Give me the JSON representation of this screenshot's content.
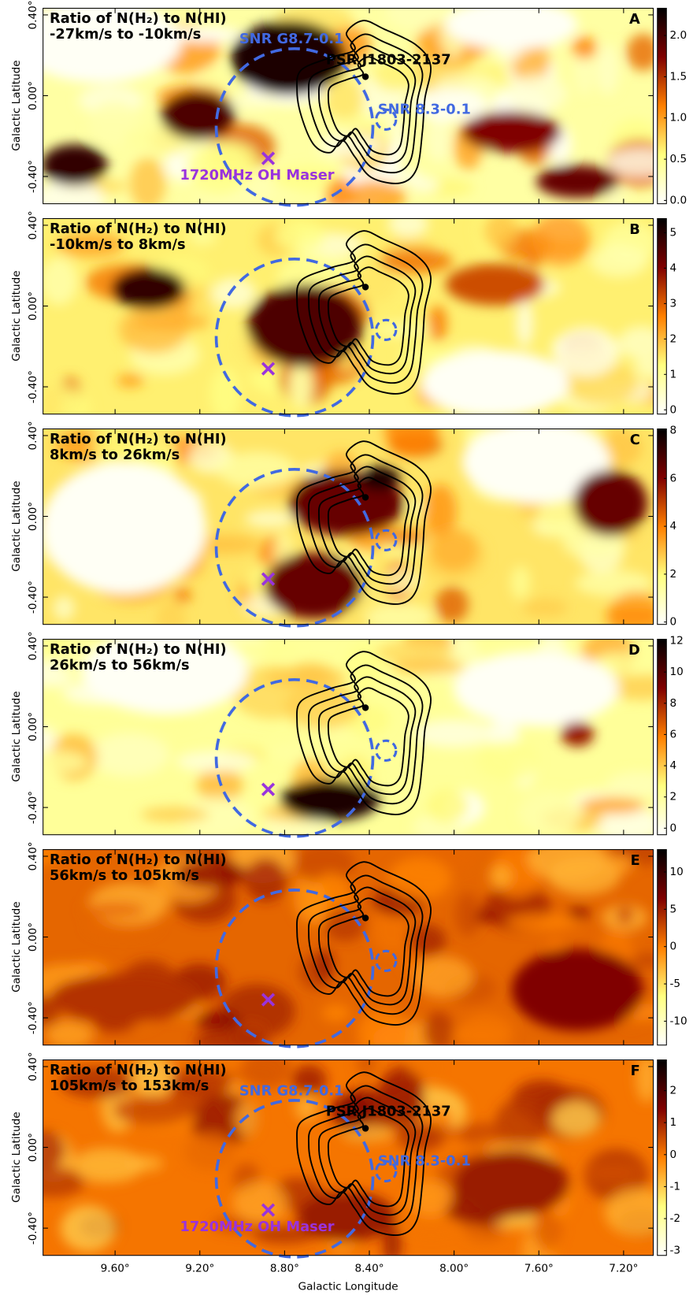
{
  "chart_data": [
    {
      "type": "heatmap",
      "title": "Ratio of N(H₂) to N(HI)",
      "subtitle": "-27km/s to -10km/s",
      "panel": "A",
      "ylabel": "Galactic Latitude",
      "ylim": [
        -0.535,
        0.433
      ],
      "yticks": [
        {
          "value": 0.4,
          "label": "0.40°"
        },
        {
          "value": 0,
          "label": "0.00°"
        },
        {
          "value": -0.4,
          "label": "-0.40°"
        }
      ],
      "colormap": "afmhot_r",
      "clim": [
        -0.04,
        2.33
      ],
      "cticks": [
        {
          "value": 0,
          "label": "0.0"
        },
        0.5,
        {
          "value": 1,
          "label": "1.0"
        },
        1.5,
        {
          "value": 2,
          "label": "2.0"
        }
      ],
      "annotations": [
        {
          "text": "SNR G8.7-0.1",
          "color": "#4169e1"
        },
        {
          "text": "PSR J1803-2137",
          "color": "#000000"
        },
        {
          "text": "SNR 8.3-0.1",
          "color": "#4169e1"
        },
        {
          "text": "1720MHz OH Maser",
          "color": "#9933dd"
        }
      ]
    },
    {
      "type": "heatmap",
      "title": "Ratio of N(H₂) to N(HI)",
      "subtitle": "-10km/s to 8km/s",
      "panel": "B",
      "ylabel": "Galactic Latitude",
      "ylim": [
        -0.535,
        0.433
      ],
      "yticks": [
        {
          "value": 0.4,
          "label": "0.40°"
        },
        {
          "value": 0,
          "label": "0.00°"
        },
        {
          "value": -0.4,
          "label": "-0.40°"
        }
      ],
      "colormap": "afmhot_r",
      "clim": [
        -0.12,
        5.4
      ],
      "cticks": [
        0,
        1,
        2,
        3,
        4,
        5
      ]
    },
    {
      "type": "heatmap",
      "title": "Ratio of N(H₂) to N(HI)",
      "subtitle": "8km/s to 26km/s",
      "panel": "C",
      "ylabel": "Galactic Latitude",
      "ylim": [
        -0.535,
        0.433
      ],
      "yticks": [
        {
          "value": 0.4,
          "label": "0.40°"
        },
        {
          "value": 0,
          "label": "0.00°"
        },
        {
          "value": -0.4,
          "label": "-0.40°"
        }
      ],
      "colormap": "afmhot_r",
      "clim": [
        -0.1,
        8.07
      ],
      "cticks": [
        0,
        2,
        4,
        6,
        8
      ]
    },
    {
      "type": "heatmap",
      "title": "Ratio of N(H₂) to N(HI)",
      "subtitle": "26km/s to 56km/s",
      "panel": "D",
      "ylabel": "Galactic Latitude",
      "ylim": [
        -0.535,
        0.433
      ],
      "yticks": [
        {
          "value": 0.4,
          "label": "0.40°"
        },
        {
          "value": 0,
          "label": "0.00°"
        },
        {
          "value": -0.4,
          "label": "-0.40°"
        }
      ],
      "colormap": "afmhot_r",
      "clim": [
        -0.42,
        12.1
      ],
      "cticks": [
        0,
        2,
        4,
        6,
        8,
        10,
        12
      ]
    },
    {
      "type": "heatmap",
      "title": "Ratio of N(H₂) to N(HI)",
      "subtitle": "56km/s to 105km/s",
      "panel": "E",
      "ylabel": "Galactic Latitude",
      "ylim": [
        -0.535,
        0.433
      ],
      "yticks": [
        {
          "value": 0.4,
          "label": "0.40°"
        },
        {
          "value": 0,
          "label": "0.00°"
        },
        {
          "value": -0.4,
          "label": "-0.40°"
        }
      ],
      "colormap": "afmhot_r",
      "clim": [
        -13.2,
        13.0
      ],
      "cticks": [
        -10,
        -5,
        0,
        5,
        10
      ]
    },
    {
      "type": "heatmap",
      "title": "Ratio of N(H₂) to N(HI)",
      "subtitle": "105km/s to 153km/s",
      "panel": "F",
      "ylabel": "Galactic Latitude",
      "xlabel": "Galactic Longitude",
      "xlim": [
        9.94,
        7.06
      ],
      "xticks": [
        {
          "value": 9.6,
          "label": "9.60°"
        },
        {
          "value": 9.2,
          "label": "9.20°"
        },
        {
          "value": 8.8,
          "label": "8.80°"
        },
        {
          "value": 8.4,
          "label": "8.40°"
        },
        {
          "value": 8,
          "label": "8.00°"
        },
        {
          "value": 7.6,
          "label": "7.60°"
        },
        {
          "value": 7.2,
          "label": "7.20°"
        }
      ],
      "ylim": [
        -0.535,
        0.433
      ],
      "yticks": [
        {
          "value": 0.4,
          "label": "0.40°"
        },
        {
          "value": 0,
          "label": "0.00°"
        },
        {
          "value": -0.4,
          "label": "-0.40°"
        }
      ],
      "colormap": "afmhot_r",
      "clim": [
        -3.15,
        2.96
      ],
      "cticks": [
        -3,
        -2,
        -1,
        0,
        1,
        2
      ],
      "annotations": [
        {
          "text": "SNR G8.7-0.1",
          "color": "#4169e1"
        },
        {
          "text": "PSR J1803-2137",
          "color": "#000000"
        },
        {
          "text": "SNR 8.3-0.1",
          "color": "#4169e1"
        },
        {
          "text": "1720MHz OH Maser",
          "color": "#9933dd"
        }
      ]
    }
  ]
}
